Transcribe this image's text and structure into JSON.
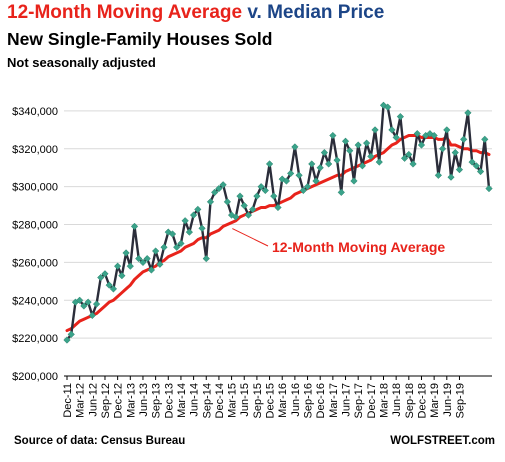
{
  "header": {
    "title_part1": "12-Month Moving Average",
    "title_part2": " v. ",
    "title_part3": "Median Price",
    "subtitle": "New Single-Family Houses Sold",
    "note": "Not seasonally adjusted"
  },
  "footer": {
    "source": "Source of data: Census Bureau",
    "brand": "WOLFSTREET.com"
  },
  "colors": {
    "title_red": "#e8231b",
    "title_blue": "#1c4587",
    "median_line": "#2b2d3a",
    "marker": "#3aa38a",
    "moving_avg": "#e8231b",
    "grid": "#d9d9d9"
  },
  "chart_data": {
    "type": "line",
    "annotation": "12-Month Moving Average",
    "ylim": [
      200000,
      350000
    ],
    "y_ticks": [
      "$200,000",
      "$220,000",
      "$240,000",
      "$260,000",
      "$280,000",
      "$300,000",
      "$320,000",
      "$340,000"
    ],
    "y_tick_values": [
      200000,
      220000,
      240000,
      260000,
      280000,
      300000,
      320000,
      340000
    ],
    "x_tick_labels": [
      "Dec-11",
      "Mar-12",
      "Jun-12",
      "Sep-12",
      "Dec-12",
      "Mar-13",
      "Jun-13",
      "Sep-13",
      "Dec-13",
      "Mar-14",
      "Jun-14",
      "Sep-14",
      "Dec-14",
      "Mar-15",
      "Jun-15",
      "Sep-15",
      "Dec-15",
      "Mar-16",
      "Jun-16",
      "Sep-16",
      "Dec-16",
      "Mar-17",
      "Jun-17",
      "Sep-17",
      "Dec-17",
      "Mar-18",
      "Jun-18",
      "Sep-18",
      "Dec-18",
      "Mar-19",
      "Jun-19",
      "Sep-19"
    ],
    "x_start": "Dec-11",
    "grid": "horizontal",
    "series": [
      {
        "style": "line-with-diamond-markers",
        "values": [
          219000,
          222000,
          239000,
          240000,
          237000,
          239000,
          232000,
          238000,
          252000,
          254000,
          248000,
          246000,
          258000,
          253000,
          265000,
          258000,
          279000,
          262000,
          260000,
          262000,
          256000,
          266000,
          259000,
          268000,
          276000,
          275000,
          268000,
          270000,
          282000,
          276000,
          285000,
          288000,
          278000,
          262000,
          292000,
          297000,
          299000,
          301000,
          292000,
          285000,
          284000,
          295000,
          290000,
          285000,
          288000,
          295000,
          300000,
          298000,
          312000,
          295000,
          289000,
          304000,
          303000,
          307000,
          321000,
          306000,
          298000,
          300000,
          312000,
          303000,
          310000,
          318000,
          312000,
          327000,
          314000,
          297000,
          324000,
          319000,
          303000,
          322000,
          311000,
          323000,
          316000,
          330000,
          313000,
          343000,
          342000,
          330000,
          326000,
          337000,
          315000,
          317000,
          312000,
          328000,
          322000,
          327000,
          328000,
          327000,
          306000,
          320000,
          330000,
          305000,
          318000,
          309000,
          325000,
          339000,
          313000,
          311000,
          308000,
          325000,
          299000
        ]
      },
      {
        "name": "12-Month Moving Average",
        "style": "thick-line",
        "values": [
          224000,
          225000,
          227000,
          229000,
          230000,
          231000,
          232000,
          233000,
          235000,
          237000,
          239000,
          240000,
          242000,
          244000,
          246000,
          248000,
          251000,
          253000,
          255000,
          256000,
          257000,
          258000,
          260000,
          261000,
          263000,
          264000,
          265000,
          266000,
          268000,
          269000,
          270000,
          272000,
          273000,
          273000,
          275000,
          276000,
          277000,
          279000,
          280000,
          281000,
          282000,
          284000,
          285000,
          286000,
          287000,
          288000,
          289000,
          289000,
          290000,
          290000,
          291000,
          292000,
          293000,
          294000,
          296000,
          297000,
          298000,
          299000,
          300000,
          301000,
          302000,
          303000,
          304000,
          305000,
          306000,
          306000,
          308000,
          309000,
          310000,
          311000,
          312000,
          313000,
          314000,
          316000,
          317000,
          318000,
          320000,
          322000,
          323000,
          325000,
          326000,
          327000,
          327000,
          327000,
          326000,
          326000,
          326000,
          326000,
          325000,
          325000,
          326000,
          322000,
          322000,
          321000,
          320000,
          320000,
          319000,
          319000,
          318000,
          318000,
          317000
        ]
      }
    ]
  }
}
